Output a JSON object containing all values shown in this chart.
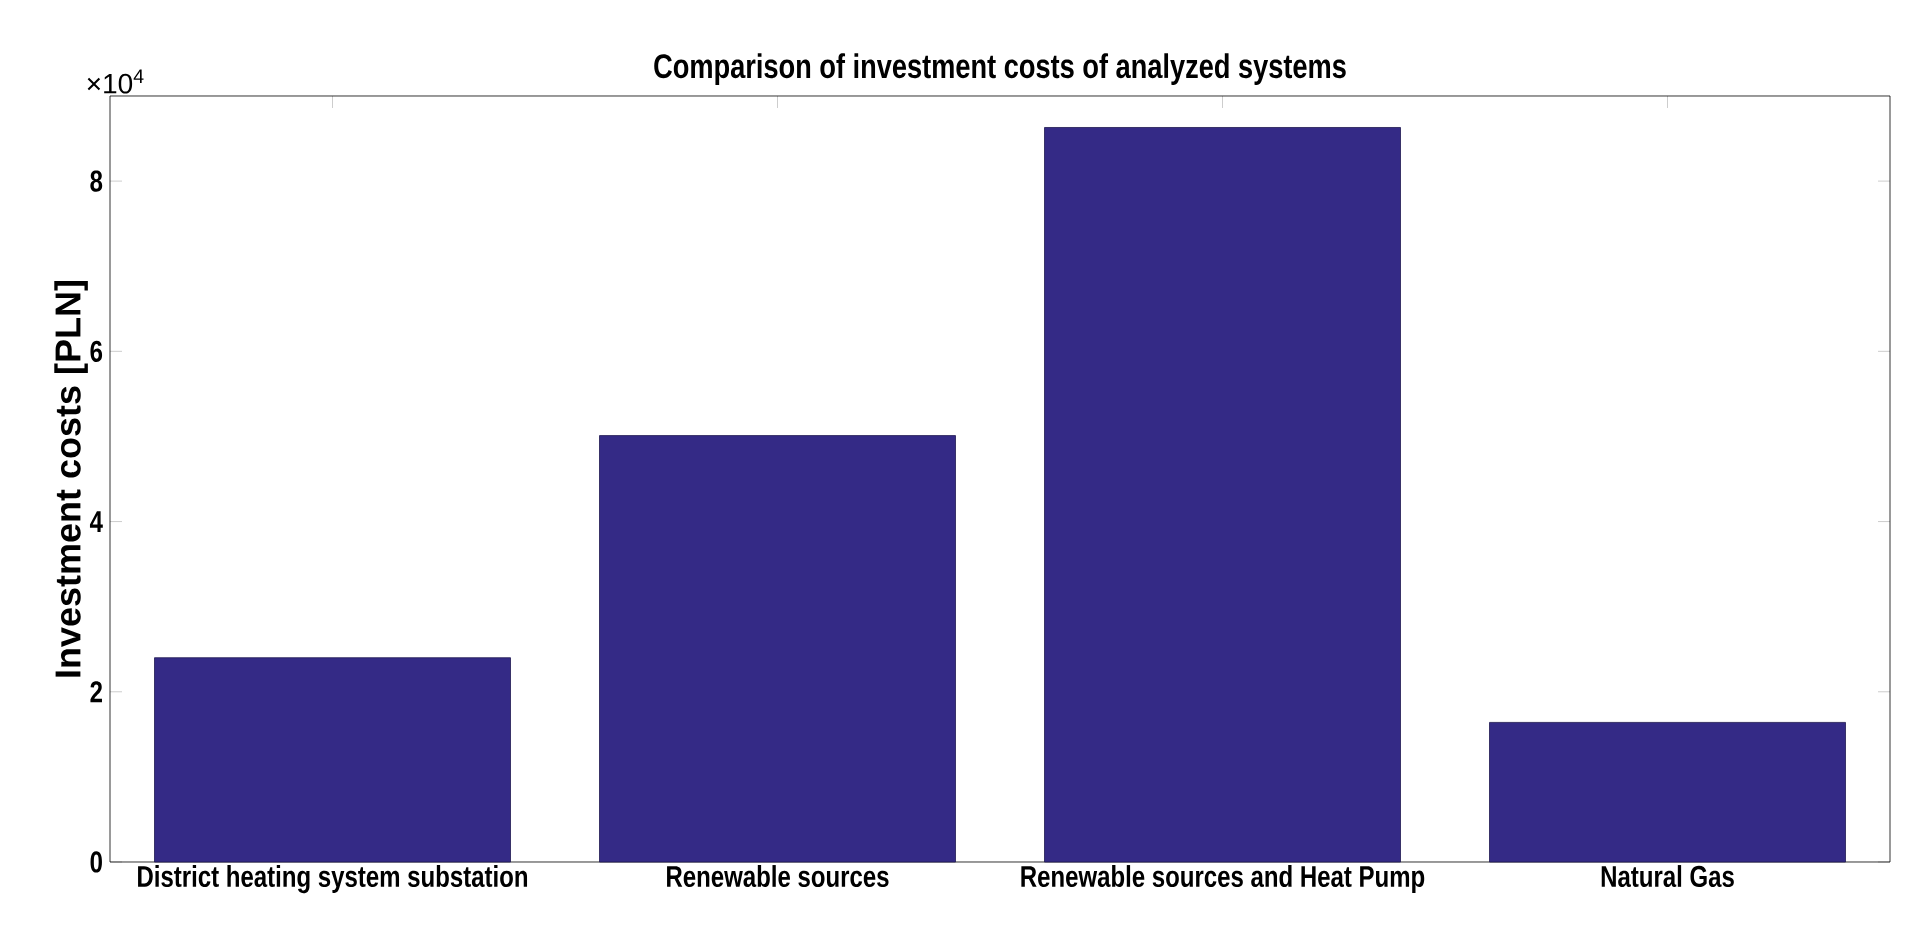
{
  "chart_data": {
    "type": "bar",
    "title": "Comparison of investment costs of analyzed systems",
    "ylabel": "Investment costs [PLN]",
    "categories": [
      "District heating system substation",
      "Renewable sources",
      "Renewable sources and Heat Pump",
      "Natural Gas"
    ],
    "values": [
      2.4,
      5.01,
      8.63,
      1.64
    ],
    "color": "#342a86",
    "ylim": [
      0,
      9
    ],
    "yticks": [
      0,
      2,
      4,
      6,
      8
    ],
    "annotations": [
      "×10$^{4}$"
    ]
  }
}
